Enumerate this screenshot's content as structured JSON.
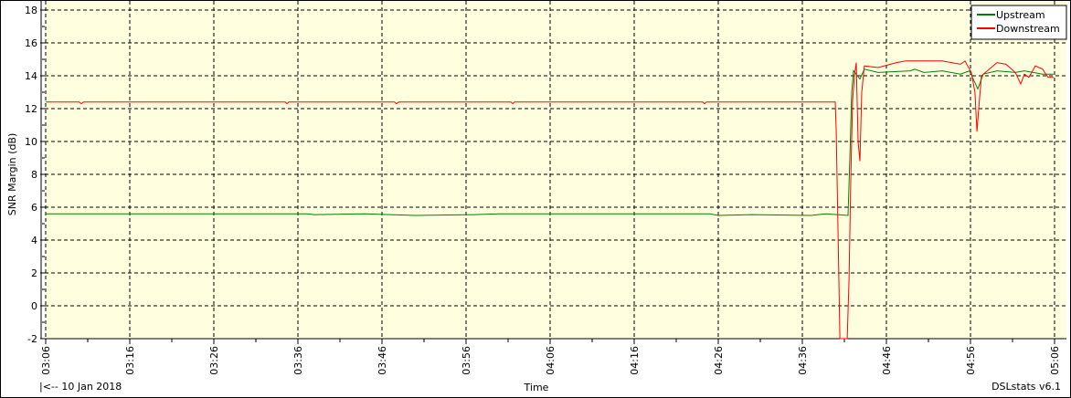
{
  "chart_data": {
    "type": "line",
    "title": "",
    "xlabel": "Time",
    "ylabel": "SNR Margin (dB)",
    "ylim": [
      -2,
      18
    ],
    "yticks": [
      -2,
      0,
      2,
      4,
      6,
      8,
      10,
      12,
      14,
      16,
      18
    ],
    "xlim": [
      "03:06",
      "05:06"
    ],
    "xticks": [
      "03:06",
      "03:16",
      "03:26",
      "03:36",
      "03:46",
      "03:56",
      "04:06",
      "04:16",
      "04:26",
      "04:36",
      "04:46",
      "04:56",
      "05:06"
    ],
    "grid": true,
    "legend_position": "top-right",
    "plot_background": "#ffffe0",
    "series": [
      {
        "name": "Upstream",
        "color": "#008000",
        "points": [
          [
            "03:06:00",
            5.6
          ],
          [
            "03:37:00",
            5.6
          ],
          [
            "03:38:00",
            5.55
          ],
          [
            "03:44:00",
            5.6
          ],
          [
            "03:50:00",
            5.5
          ],
          [
            "03:57:00",
            5.55
          ],
          [
            "04:00:00",
            5.6
          ],
          [
            "04:25:00",
            5.6
          ],
          [
            "04:26:00",
            5.5
          ],
          [
            "04:30:00",
            5.55
          ],
          [
            "04:37:00",
            5.5
          ],
          [
            "04:38:50",
            5.6
          ],
          [
            "04:41:26",
            5.5
          ],
          [
            "04:41:39",
            9
          ],
          [
            "04:41:52",
            13
          ],
          [
            "04:42:05",
            14.3
          ],
          [
            "04:42:51",
            13.8
          ],
          [
            "04:43:23",
            14.4
          ],
          [
            "04:45:01",
            14.2
          ],
          [
            "04:48:50",
            14.3
          ],
          [
            "04:49:22",
            14.4
          ],
          [
            "04:50:28",
            14.2
          ],
          [
            "04:52:38",
            14.3
          ],
          [
            "04:54:48",
            14.1
          ],
          [
            "04:55:53",
            14.3
          ],
          [
            "04:56:52",
            13.2
          ],
          [
            "04:57:31",
            14.1
          ],
          [
            "04:59:09",
            14.3
          ],
          [
            "05:01:20",
            14.2
          ],
          [
            "05:02:25",
            14.3
          ],
          [
            "05:04:35",
            14.1
          ],
          [
            "05:05:53",
            14.1
          ]
        ]
      },
      {
        "name": "Downstream",
        "color": "#ff0000",
        "points": [
          [
            "03:06:00",
            12.4
          ],
          [
            "03:10:00",
            12.4
          ],
          [
            "03:10:14",
            12.3
          ],
          [
            "03:10:30",
            12.4
          ],
          [
            "03:34:30",
            12.4
          ],
          [
            "03:34:42",
            12.3
          ],
          [
            "03:34:55",
            12.4
          ],
          [
            "03:47:30",
            12.4
          ],
          [
            "03:47:44",
            12.3
          ],
          [
            "03:48:00",
            12.4
          ],
          [
            "04:01:20",
            12.4
          ],
          [
            "04:01:33",
            12.3
          ],
          [
            "04:01:45",
            12.4
          ],
          [
            "04:24:10",
            12.4
          ],
          [
            "04:24:22",
            12.3
          ],
          [
            "04:24:35",
            12.4
          ],
          [
            "04:39:55",
            12.4
          ],
          [
            "04:40:01",
            10.8
          ],
          [
            "04:40:14",
            5
          ],
          [
            "04:40:28",
            -2
          ],
          [
            "04:41:20",
            -2
          ],
          [
            "04:41:33",
            1.6
          ],
          [
            "04:41:46",
            8
          ],
          [
            "04:41:59",
            12.5
          ],
          [
            "04:42:12",
            14.0
          ],
          [
            "04:42:25",
            14.8
          ],
          [
            "04:42:38",
            10
          ],
          [
            "04:42:51",
            8.8
          ],
          [
            "04:43:04",
            13
          ],
          [
            "04:43:23",
            14.6
          ],
          [
            "04:45:01",
            14.5
          ],
          [
            "04:47:12",
            14.8
          ],
          [
            "04:48:17",
            14.9
          ],
          [
            "04:52:38",
            14.9
          ],
          [
            "04:54:48",
            14.7
          ],
          [
            "04:55:21",
            14.9
          ],
          [
            "04:56:06",
            14.2
          ],
          [
            "04:56:32",
            13.0
          ],
          [
            "04:56:46",
            10.6
          ],
          [
            "04:56:59",
            12
          ],
          [
            "04:57:18",
            14.0
          ],
          [
            "04:59:09",
            14.8
          ],
          [
            "05:00:14",
            14.7
          ],
          [
            "05:01:20",
            14.2
          ],
          [
            "05:01:59",
            13.5
          ],
          [
            "05:02:25",
            14.1
          ],
          [
            "05:02:57",
            13.9
          ],
          [
            "05:03:43",
            14.6
          ],
          [
            "05:04:35",
            14.4
          ],
          [
            "05:05:14",
            13.9
          ],
          [
            "05:05:53",
            13.9
          ]
        ]
      }
    ]
  },
  "footer": {
    "date_nav": "|<-- 10 Jan 2018",
    "app_version": "DSLstats v6.1"
  }
}
